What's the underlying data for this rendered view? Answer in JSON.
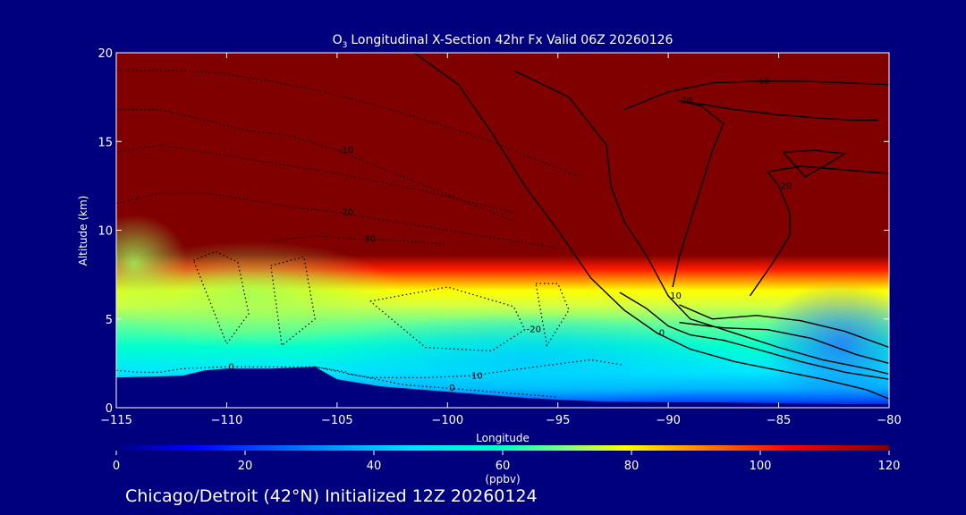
{
  "chart_data": {
    "type": "heatmap",
    "title": "Longitudinal X-Section 42hr  Fx Valid 06Z 20260126",
    "title_species": "O",
    "title_subscript": "3",
    "xlabel": "Longitude",
    "ylabel": "Altitude (km)",
    "xlim": [
      -115,
      -80
    ],
    "ylim": [
      0,
      20
    ],
    "x_ticks": [
      -115,
      -110,
      -105,
      -100,
      -95,
      -90,
      -85,
      -80
    ],
    "x_tick_labels": [
      "−115",
      "−110",
      "−105",
      "−100",
      "−95",
      "−90",
      "−85",
      "−80"
    ],
    "y_ticks": [
      0,
      5,
      10,
      15,
      20
    ],
    "y_tick_labels": [
      "0",
      "5",
      "10",
      "15",
      "20"
    ],
    "colorbar": {
      "min": 0,
      "max": 120,
      "ticks": [
        0,
        20,
        40,
        60,
        80,
        100,
        120
      ],
      "tick_labels": [
        "0",
        "20",
        "40",
        "60",
        "80",
        "100",
        "120"
      ],
      "units": "(ppbv)",
      "colors": [
        "#000080",
        "#0000ff",
        "#0080ff",
        "#00e0ff",
        "#00ffc8",
        "#80ff80",
        "#ffff00",
        "#ff8000",
        "#ff0000",
        "#800000"
      ]
    },
    "terrain_profile": {
      "lon": [
        -115,
        -112,
        -111,
        -110,
        -108,
        -106,
        -105,
        -103,
        -100,
        -97,
        -95,
        -93,
        -90,
        -88,
        -85,
        -82,
        -80
      ],
      "alt_km": [
        1.7,
        1.8,
        2.1,
        2.2,
        2.2,
        2.3,
        1.6,
        1.2,
        0.9,
        0.6,
        0.45,
        0.35,
        0.3,
        0.3,
        0.25,
        0.2,
        0.2
      ]
    },
    "tropopause_boundary": {
      "lon": [
        -115,
        -113,
        -112,
        -111,
        -109,
        -107,
        -105,
        -103,
        -100,
        -97,
        -95,
        -93,
        -90,
        -88,
        -85,
        -83,
        -80
      ],
      "alt_km": [
        11.2,
        10.8,
        9.9,
        9.4,
        9.6,
        9.5,
        8.9,
        8.5,
        8.0,
        7.5,
        7.2,
        6.9,
        7.0,
        7.5,
        7.9,
        8.1,
        8.3
      ]
    },
    "solid_contours": [
      {
        "label": "0",
        "lon": [
          -101.5,
          -99.5,
          -98,
          -96.5,
          -95,
          -93.5,
          -92,
          -90.5,
          -89,
          -87,
          -85,
          -83,
          -81,
          -80
        ],
        "alt_km": [
          20,
          18.2,
          15.5,
          12.5,
          10,
          7.3,
          5.5,
          4.2,
          3.3,
          2.6,
          2.1,
          1.6,
          1.0,
          0.5
        ]
      },
      {
        "label": "10",
        "lon": [
          -97,
          -94.5,
          -92.8,
          -92.6,
          -92,
          -91,
          -90,
          -89,
          -87,
          -85,
          -83,
          -81,
          -80
        ],
        "alt_km": [
          19,
          17.5,
          14.8,
          12.5,
          10.5,
          8.6,
          6.3,
          5.0,
          4.2,
          3.4,
          2.7,
          2.2,
          1.9
        ]
      },
      {
        "label": "10",
        "lon": [
          -92,
          -90,
          -88,
          -86,
          -84,
          -82,
          -80
        ],
        "alt_km": [
          16.8,
          17.8,
          18.3,
          18.4,
          18.4,
          18.3,
          18.2
        ]
      },
      {
        "label": "",
        "lon": [
          -92.2,
          -91,
          -90,
          -89,
          -87.5,
          -86,
          -84,
          -82,
          -80
        ],
        "alt_km": [
          6.5,
          5.6,
          4.6,
          4.1,
          3.8,
          3.3,
          2.6,
          2.0,
          1.6
        ]
      },
      {
        "label": "",
        "lon": [
          -89.5,
          -87.5,
          -85.5,
          -83.5,
          -81.5,
          -80
        ],
        "alt_km": [
          4.8,
          4.5,
          4.4,
          3.9,
          3.0,
          2.5
        ]
      },
      {
        "label": "",
        "lon": [
          -89.5,
          -88,
          -86,
          -84,
          -82,
          -80
        ],
        "alt_km": [
          5.8,
          5.0,
          5.2,
          4.9,
          4.3,
          3.4
        ]
      },
      {
        "label": "20",
        "lon": [
          -89.8,
          -89.5,
          -89,
          -88.5,
          -88,
          -87.5,
          -88.5,
          -89.5,
          -89,
          -87,
          -85,
          -83,
          -81.5,
          -80.5
        ],
        "alt_km": [
          6.8,
          8.5,
          10.5,
          12.5,
          14.5,
          16.0,
          17.0,
          17.3,
          17.2,
          16.8,
          16.5,
          16.3,
          16.2,
          16.2
        ]
      },
      {
        "label": "20",
        "lon": [
          -86.3,
          -85.3,
          -84.5,
          -84.5,
          -85,
          -85.5,
          -84,
          -82,
          -80
        ],
        "alt_km": [
          6.3,
          8.1,
          9.7,
          11,
          12.5,
          13.3,
          13.6,
          13.4,
          13.2
        ]
      },
      {
        "label": "",
        "lon": [
          -84.8,
          -83.8,
          -82,
          -83.3,
          -84.8
        ],
        "alt_km": [
          14.4,
          13.0,
          14.3,
          14.5,
          14.4
        ]
      }
    ],
    "dashed_contours": [
      {
        "label": "0",
        "lon": [
          -115,
          -114,
          -113,
          -112,
          -110,
          -108,
          -106,
          -104.5
        ],
        "alt_km": [
          2.1,
          2.0,
          2.0,
          2.2,
          2.3,
          2.3,
          2.3,
          2.0
        ]
      },
      {
        "label": "0",
        "lon": [
          -106,
          -104,
          -102,
          -100,
          -98,
          -96,
          -95
        ],
        "alt_km": [
          2.3,
          1.8,
          1.3,
          1.1,
          0.9,
          0.7,
          0.6
        ]
      },
      {
        "label": "10",
        "lon": [
          -104.5,
          -103.5,
          -101,
          -99,
          -96,
          -93.5,
          -92
        ],
        "alt_km": [
          1.9,
          1.7,
          1.7,
          1.8,
          2.3,
          2.7,
          2.4
        ]
      },
      {
        "label": "-10",
        "lon": [
          -115,
          -113,
          -111,
          -109,
          -107,
          -105,
          -103,
          -101,
          -99,
          -97
        ],
        "alt_km": [
          16.8,
          16.8,
          16.2,
          15.6,
          15.3,
          14.5,
          13.5,
          12.5,
          11.5,
          10.5
        ]
      },
      {
        "label": "-20",
        "lon": [
          -115,
          -113,
          -111,
          -109,
          -107,
          -105,
          -103,
          -101,
          -99,
          -97,
          -95
        ],
        "alt_km": [
          11.5,
          12.1,
          12.1,
          11.7,
          11.3,
          11.0,
          10.6,
          10.2,
          9.8,
          9.4,
          9.0
        ]
      },
      {
        "label": "-30",
        "lon": [
          -108,
          -106,
          -104,
          -102,
          -100
        ],
        "alt_km": [
          9.4,
          9.7,
          9.5,
          9.4,
          9.2
        ]
      },
      {
        "label": "-20",
        "lon": [
          -103.5,
          -100,
          -97,
          -96.5,
          -98,
          -101,
          -103.5
        ],
        "alt_km": [
          6.0,
          6.8,
          5.7,
          4.4,
          3.2,
          3.4,
          6.0
        ]
      },
      {
        "label": "",
        "lon": [
          -111.5,
          -110.5,
          -109.5,
          -109,
          -110,
          -111.5
        ],
        "alt_km": [
          8.3,
          8.8,
          8.2,
          5.3,
          3.6,
          8.3
        ]
      },
      {
        "label": "",
        "lon": [
          -108,
          -106.5,
          -106,
          -107.5,
          -108
        ],
        "alt_km": [
          8.0,
          8.5,
          5.0,
          3.5,
          8.0
        ]
      },
      {
        "label": "",
        "lon": [
          -96,
          -95,
          -94.5,
          -95.5,
          -96
        ],
        "alt_km": [
          7.0,
          7.0,
          5.5,
          3.5,
          7.0
        ]
      },
      {
        "label": "",
        "lon": [
          -115,
          -112,
          -110,
          -108,
          -106,
          -104,
          -102,
          -100,
          -98,
          -96,
          -94
        ],
        "alt_km": [
          19.0,
          19.0,
          18.8,
          18.4,
          17.9,
          17.3,
          16.6,
          15.8,
          15.0,
          14.0,
          13.0
        ]
      },
      {
        "label": "",
        "lon": [
          -115,
          -113,
          -111,
          -109,
          -107,
          -105,
          -103,
          -101,
          -99,
          -97
        ],
        "alt_km": [
          14.4,
          14.8,
          14.4,
          14.0,
          13.6,
          13.2,
          12.7,
          12.2,
          11.6,
          11.0
        ]
      }
    ]
  },
  "footer": {
    "caption": "Chicago/Detroit (42°N) Initialized 12Z 20260124"
  }
}
